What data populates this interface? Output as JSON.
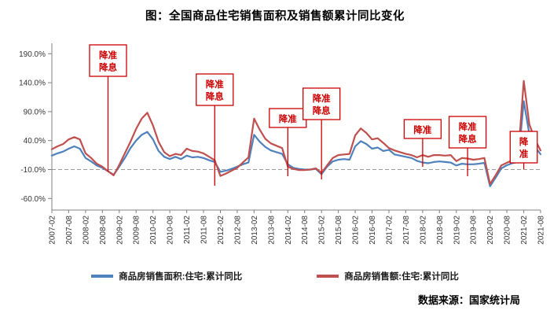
{
  "chart_data": {
    "type": "line",
    "title": "图：全国商品住宅销售面积及销售额累计同比变化",
    "source": "数据来源：国家统计局",
    "legend_position": "bottom",
    "grid": "off",
    "reference_line": -10,
    "ylim": [
      -80,
      208
    ],
    "y_ticks": [
      190,
      140,
      90,
      40,
      -10,
      -60
    ],
    "y_tick_labels": [
      "190.0%",
      "140.0%",
      "90.0%",
      "40.0%",
      "-10.0%",
      "-60.0%"
    ],
    "x_tick_months": [
      "02",
      "08"
    ],
    "annotation_color": "#cc0000",
    "x": [
      "2007-02",
      "2007-04",
      "2007-06",
      "2007-08",
      "2007-10",
      "2007-12",
      "2008-02",
      "2008-04",
      "2008-06",
      "2008-08",
      "2008-10",
      "2008-12",
      "2009-02",
      "2009-04",
      "2009-06",
      "2009-08",
      "2009-10",
      "2009-12",
      "2010-02",
      "2010-04",
      "2010-06",
      "2010-08",
      "2010-10",
      "2010-12",
      "2011-02",
      "2011-04",
      "2011-06",
      "2011-08",
      "2011-10",
      "2011-12",
      "2012-02",
      "2012-04",
      "2012-06",
      "2012-08",
      "2012-10",
      "2012-12",
      "2013-02",
      "2013-04",
      "2013-06",
      "2013-08",
      "2013-10",
      "2013-12",
      "2014-02",
      "2014-04",
      "2014-06",
      "2014-08",
      "2014-10",
      "2014-12",
      "2015-02",
      "2015-04",
      "2015-06",
      "2015-08",
      "2015-10",
      "2015-12",
      "2016-02",
      "2016-04",
      "2016-06",
      "2016-08",
      "2016-10",
      "2016-12",
      "2017-02",
      "2017-04",
      "2017-06",
      "2017-08",
      "2017-10",
      "2017-12",
      "2018-02",
      "2018-04",
      "2018-06",
      "2018-08",
      "2018-10",
      "2018-12",
      "2019-02",
      "2019-04",
      "2019-06",
      "2019-08",
      "2019-10",
      "2019-12",
      "2020-02",
      "2020-04",
      "2020-06",
      "2020-08",
      "2020-10",
      "2020-12",
      "2021-02",
      "2021-04",
      "2021-06",
      "2021-08"
    ],
    "series": [
      {
        "name": "商品房销售面积:住宅:累计同比",
        "color": "#4f81bd",
        "values": [
          14,
          18,
          21,
          26,
          30,
          26,
          10,
          4,
          -3,
          -7,
          -13,
          -19,
          -5,
          10,
          27,
          40,
          50,
          55,
          42,
          22,
          12,
          8,
          12,
          8,
          14,
          11,
          12,
          10,
          6,
          3,
          -14,
          -12,
          -9,
          -5,
          -1,
          2,
          50,
          38,
          29,
          23,
          20,
          17,
          -1,
          -7,
          -9,
          -10,
          -10,
          -9,
          -18,
          -5,
          4,
          7,
          8,
          7,
          30,
          39,
          34,
          26,
          28,
          22,
          24,
          16,
          14,
          12,
          10,
          5,
          2,
          1,
          3,
          4,
          3,
          2,
          -3,
          0,
          -1,
          -1,
          0,
          1.5,
          -39,
          -24,
          -8,
          -2.5,
          1,
          3.2,
          108,
          51,
          29,
          16.5
        ]
      },
      {
        "name": "商品房销售额:住宅:累计同比",
        "color": "#c0504d",
        "values": [
          25,
          30,
          34,
          42,
          46,
          42,
          18,
          10,
          0,
          -5,
          -13,
          -20,
          -2,
          18,
          38,
          60,
          78,
          88,
          66,
          38,
          20,
          13,
          17,
          15,
          26,
          22,
          21,
          18,
          12,
          6,
          -21,
          -17,
          -12,
          -7,
          2,
          11,
          78,
          59,
          43,
          35,
          31,
          27,
          -5,
          -9,
          -11,
          -11,
          -10,
          -8,
          -16,
          -3,
          10,
          15,
          16,
          17,
          49,
          61,
          53,
          42,
          44,
          36,
          27,
          23,
          20,
          17,
          15,
          11,
          15,
          12,
          15,
          15,
          14,
          15,
          4.5,
          10,
          9,
          7,
          8,
          10,
          -35,
          -20,
          -3,
          1.6,
          6,
          11,
          143,
          68,
          42,
          23
        ]
      }
    ],
    "annotations": [
      {
        "label": "降准降息",
        "lines": [
          "降准",
          "降息"
        ],
        "x": "2008-10",
        "box_top": 57,
        "line_to": 218
      },
      {
        "label": "降准降息",
        "lines": [
          "降准",
          "降息"
        ],
        "x": "2011-12",
        "box_top": 94,
        "line_to": 236
      },
      {
        "label": "降准",
        "lines": [
          "降准"
        ],
        "x": "2014-02",
        "box_top": 138,
        "line_to": 224
      },
      {
        "label": "降准降息",
        "lines": [
          "降准",
          "降息"
        ],
        "x": "2015-02",
        "box_top": 112,
        "line_to": 228
      },
      {
        "label": "降准",
        "lines": [
          "降准"
        ],
        "x": "2018-02",
        "box_top": 152,
        "line_to": 212
      },
      {
        "label": "降准降息",
        "lines": [
          "降准",
          "降息"
        ],
        "x": "2019-06",
        "box_top": 148,
        "line_to": 224
      },
      {
        "label": "降准",
        "lines": [
          "降",
          "准"
        ],
        "x": "2021-02",
        "box_top": 167,
        "line_to": 215
      }
    ]
  }
}
